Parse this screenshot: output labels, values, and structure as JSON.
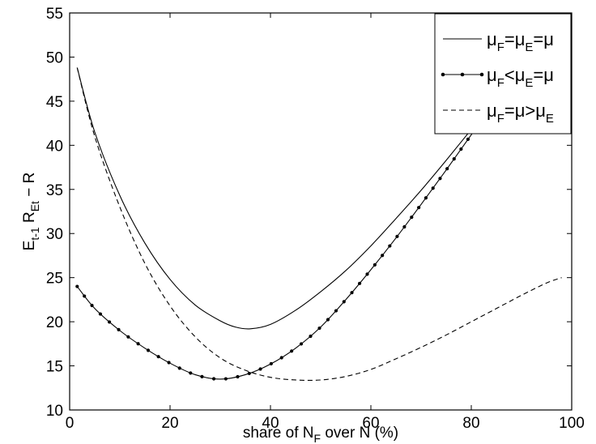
{
  "chart_data": {
    "type": "line",
    "title": "",
    "xlabel": "share of N_F over N (%)",
    "xlabel_parts": {
      "before": "share of N",
      "sub": "F",
      "after": " over N (%)"
    },
    "ylabel": "E_t-1 R_Et − R",
    "ylabel_parts": {
      "base1": "E",
      "sub1": "t-1",
      "base2": " R",
      "sub2": "Et",
      "tail": " − R"
    },
    "xlim": [
      0,
      100
    ],
    "ylim": [
      10,
      55
    ],
    "x_ticks": [
      0,
      20,
      40,
      60,
      80,
      100
    ],
    "y_ticks": [
      10,
      15,
      20,
      25,
      30,
      35,
      40,
      45,
      50,
      55
    ],
    "grid": false,
    "legend_position": "top-right",
    "series": [
      {
        "name": "μF=μE=μ",
        "legend_parts": [
          "μ",
          "F",
          "=μ",
          "E",
          "=μ",
          ""
        ],
        "style": "solid",
        "color": "#000000",
        "x": [
          1.5,
          5,
          10,
          15,
          20,
          25,
          30,
          33,
          36,
          40,
          45,
          50,
          55,
          60,
          65,
          70,
          75,
          80,
          85,
          90,
          95,
          98
        ],
        "y": [
          48.8,
          41.5,
          34.3,
          28.9,
          24.8,
          21.9,
          20.1,
          19.4,
          19.2,
          19.7,
          21.3,
          23.4,
          25.8,
          28.6,
          31.7,
          34.9,
          38.3,
          41.8,
          45.3,
          48.8,
          51.7,
          53.0
        ]
      },
      {
        "name": "μF<μE=μ",
        "legend_parts": [
          "μ",
          "F",
          "<μ",
          "E",
          "=μ",
          ""
        ],
        "style": "solid-dots",
        "color": "#000000",
        "x": [
          1.5,
          5,
          10,
          15,
          20,
          25,
          30,
          35,
          40,
          45,
          50,
          55,
          60,
          65,
          70,
          75,
          80,
          85,
          90,
          95,
          98
        ],
        "y": [
          24.0,
          21.5,
          19.0,
          17.0,
          15.3,
          14.0,
          13.5,
          14.0,
          15.2,
          17.0,
          19.4,
          22.5,
          25.9,
          29.5,
          33.3,
          37.2,
          41.2,
          45.1,
          48.8,
          51.8,
          53.0
        ]
      },
      {
        "name": "μF=μ>μE",
        "legend_parts": [
          "μ",
          "F",
          "=μ>μ",
          "",
          "",
          "E"
        ],
        "style": "dashed",
        "color": "#000000",
        "x": [
          1.5,
          5,
          10,
          15,
          20,
          25,
          30,
          35,
          40,
          45,
          50,
          55,
          60,
          65,
          70,
          75,
          80,
          85,
          90,
          95,
          98
        ],
        "y": [
          48.8,
          41.0,
          33.0,
          26.6,
          21.8,
          18.3,
          15.9,
          14.5,
          13.7,
          13.4,
          13.4,
          13.8,
          14.6,
          15.8,
          17.1,
          18.5,
          20.0,
          21.5,
          23.0,
          24.4,
          25.0
        ]
      }
    ]
  }
}
